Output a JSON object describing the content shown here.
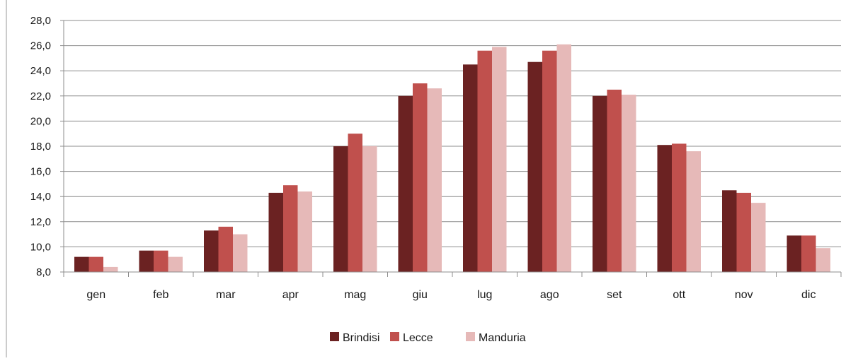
{
  "chart_data": {
    "type": "bar",
    "title": "",
    "xlabel": "",
    "ylabel": "",
    "ylim": [
      8,
      28
    ],
    "ytick_step": 2,
    "ytick_labels": [
      "8,0",
      "10,0",
      "12,0",
      "14,0",
      "16,0",
      "18,0",
      "20,0",
      "22,0",
      "24,0",
      "26,0",
      "28,0"
    ],
    "grid": true,
    "legend_position": "bottom",
    "categories": [
      "gen",
      "feb",
      "mar",
      "apr",
      "mag",
      "giu",
      "lug",
      "ago",
      "set",
      "ott",
      "nov",
      "dic"
    ],
    "series": [
      {
        "name": "Brindisi",
        "color": "#6b2222",
        "values": [
          9.2,
          9.7,
          11.3,
          14.3,
          18.0,
          22.0,
          24.5,
          24.7,
          22.0,
          18.1,
          14.5,
          10.9
        ]
      },
      {
        "name": "Lecce",
        "color": "#c0504d",
        "values": [
          9.2,
          9.7,
          11.6,
          14.9,
          19.0,
          23.0,
          25.6,
          25.6,
          22.5,
          18.2,
          14.3,
          10.9
        ]
      },
      {
        "name": "Manduria",
        "color": "#e6b9b8",
        "values": [
          8.4,
          9.2,
          11.0,
          14.4,
          18.0,
          22.6,
          25.9,
          26.1,
          22.1,
          17.6,
          13.5,
          9.9
        ]
      }
    ]
  }
}
